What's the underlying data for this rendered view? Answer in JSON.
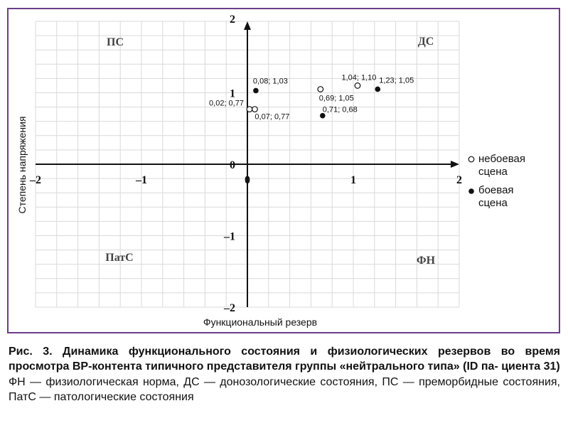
{
  "chart_data": {
    "type": "scatter",
    "xlabel": "Функциональный резерв",
    "ylabel": "Степень напряжения",
    "xlim": [
      -2,
      2
    ],
    "ylim": [
      -2,
      2
    ],
    "xticks": [
      "–2",
      "–1",
      "0",
      "1",
      "2"
    ],
    "yticks": [
      "2",
      "1",
      "0",
      "–1",
      "–2"
    ],
    "grid": true,
    "legend_position": "right",
    "quadrants": {
      "top_left": "ПС",
      "top_right": "ДС",
      "bottom_left": "ПатС",
      "bottom_right": "ФН"
    },
    "series": [
      {
        "name": "небоевая сцена",
        "marker": "open-circle",
        "points": [
          {
            "x": 0.02,
            "y": 0.77,
            "label": "0,02; 0,77"
          },
          {
            "x": 0.07,
            "y": 0.77,
            "label": "0,07; 0,77"
          },
          {
            "x": 0.69,
            "y": 1.05,
            "label": "0,69; 1,05"
          },
          {
            "x": 1.04,
            "y": 1.1,
            "label": "1,04; 1,10"
          }
        ]
      },
      {
        "name": "боевая сцена",
        "marker": "filled-circle",
        "points": [
          {
            "x": 0.08,
            "y": 1.03,
            "label": "0,08; 1,03"
          },
          {
            "x": 0.71,
            "y": 0.68,
            "label": "0,71; 0,68"
          },
          {
            "x": 1.23,
            "y": 1.05,
            "label": "1,23; 1,05"
          }
        ]
      }
    ],
    "legend": [
      {
        "line1": "небоевая",
        "line2": "сцена"
      },
      {
        "line1": "боевая",
        "line2": "сцена"
      }
    ]
  },
  "caption": {
    "title": "Рис. 3. Динамика функционального состояния и физиологических резервов во время просмотра ВР-контента типичного представителя группы «нейтрального типа» (ID па- циента 31)",
    "description": "ФН — физиологическая норма, ДС — донозологические состояния, ПС — преморбидные состояния, ПатС — патологические состояния"
  },
  "colors": {
    "frame": "#6b3d8a",
    "axis": "#111111",
    "grid": "#d9d9d9"
  }
}
